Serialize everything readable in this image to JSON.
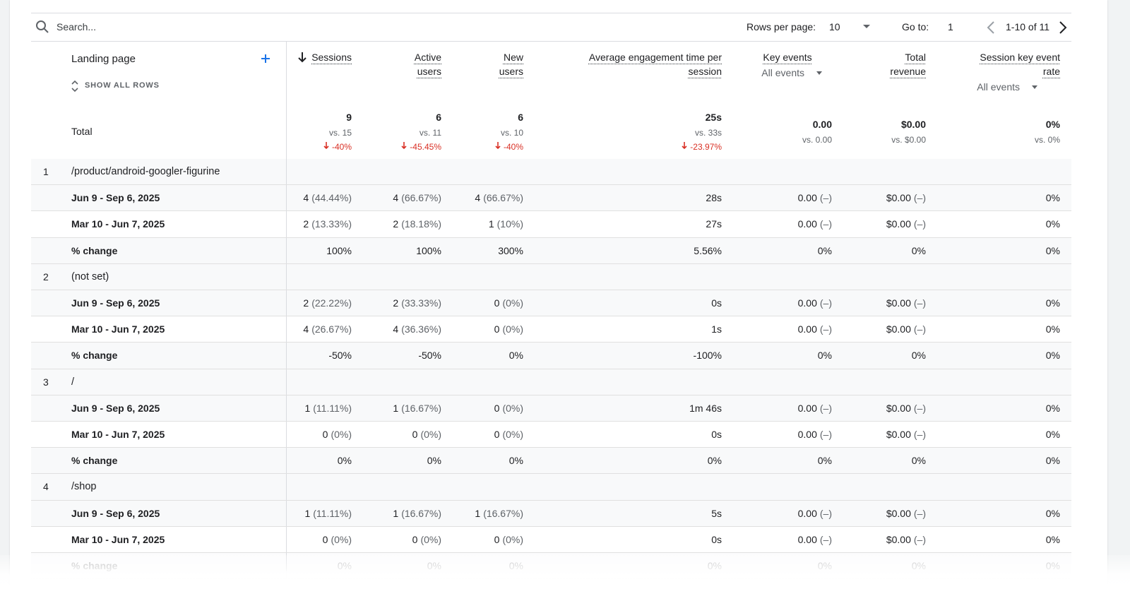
{
  "toolbar": {
    "search_placeholder": "Search...",
    "rows_per_page_label": "Rows per page:",
    "rows_per_page": "10",
    "goto_label": "Go to:",
    "goto_value": "1",
    "range": "1-10 of 11"
  },
  "table": {
    "dimension_header": "Landing page",
    "show_all_rows": "SHOW ALL ROWS",
    "total_label": "Total",
    "columns": [
      {
        "label": "Sessions"
      },
      {
        "label": "Active users"
      },
      {
        "label": "New users"
      },
      {
        "label": "Average engagement time per session"
      },
      {
        "label": "Key events",
        "selector": "All events"
      },
      {
        "label": "Total revenue"
      },
      {
        "label": "Session key event rate",
        "selector": "All events"
      }
    ],
    "totals": [
      {
        "value": "9",
        "compare": "vs. 15",
        "change": "-40%"
      },
      {
        "value": "6",
        "compare": "vs. 11",
        "change": "-45.45%"
      },
      {
        "value": "6",
        "compare": "vs. 10",
        "change": "-40%"
      },
      {
        "value": "25s",
        "compare": "vs. 33s",
        "change": "-23.97%"
      },
      {
        "value": "0.00",
        "compare": "vs. 0.00"
      },
      {
        "value": "$0.00",
        "compare": "vs. $0.00"
      },
      {
        "value": "0%",
        "compare": "vs. 0%"
      }
    ],
    "groups": [
      {
        "index": "1",
        "page": "/product/android-googler-figurine",
        "rows": [
          {
            "label": "Jun 9 - Sep 6, 2025",
            "cells": [
              [
                "4",
                "(44.44%)"
              ],
              [
                "4",
                "(66.67%)"
              ],
              [
                "4",
                "(66.67%)"
              ],
              "28s",
              [
                "0.00",
                "(–)"
              ],
              [
                "$0.00",
                "(–)"
              ],
              "0%"
            ]
          },
          {
            "label": "Mar 10 - Jun 7, 2025",
            "cells": [
              [
                "2",
                "(13.33%)"
              ],
              [
                "2",
                "(18.18%)"
              ],
              [
                "1",
                "(10%)"
              ],
              "27s",
              [
                "0.00",
                "(–)"
              ],
              [
                "$0.00",
                "(–)"
              ],
              "0%"
            ]
          },
          {
            "label": "% change",
            "cells": [
              "100%",
              "100%",
              "300%",
              "5.56%",
              "0%",
              "0%",
              "0%"
            ]
          }
        ]
      },
      {
        "index": "2",
        "page": "(not set)",
        "rows": [
          {
            "label": "Jun 9 - Sep 6, 2025",
            "cells": [
              [
                "2",
                "(22.22%)"
              ],
              [
                "2",
                "(33.33%)"
              ],
              [
                "0",
                "(0%)"
              ],
              "0s",
              [
                "0.00",
                "(–)"
              ],
              [
                "$0.00",
                "(–)"
              ],
              "0%"
            ]
          },
          {
            "label": "Mar 10 - Jun 7, 2025",
            "cells": [
              [
                "4",
                "(26.67%)"
              ],
              [
                "4",
                "(36.36%)"
              ],
              [
                "0",
                "(0%)"
              ],
              "1s",
              [
                "0.00",
                "(–)"
              ],
              [
                "$0.00",
                "(–)"
              ],
              "0%"
            ]
          },
          {
            "label": "% change",
            "cells": [
              "-50%",
              "-50%",
              "0%",
              "-100%",
              "0%",
              "0%",
              "0%"
            ]
          }
        ]
      },
      {
        "index": "3",
        "page": "/",
        "rows": [
          {
            "label": "Jun 9 - Sep 6, 2025",
            "cells": [
              [
                "1",
                "(11.11%)"
              ],
              [
                "1",
                "(16.67%)"
              ],
              [
                "0",
                "(0%)"
              ],
              "1m 46s",
              [
                "0.00",
                "(–)"
              ],
              [
                "$0.00",
                "(–)"
              ],
              "0%"
            ]
          },
          {
            "label": "Mar 10 - Jun 7, 2025",
            "cells": [
              [
                "0",
                "(0%)"
              ],
              [
                "0",
                "(0%)"
              ],
              [
                "0",
                "(0%)"
              ],
              "0s",
              [
                "0.00",
                "(–)"
              ],
              [
                "$0.00",
                "(–)"
              ],
              "0%"
            ]
          },
          {
            "label": "% change",
            "cells": [
              "0%",
              "0%",
              "0%",
              "0%",
              "0%",
              "0%",
              "0%"
            ]
          }
        ]
      },
      {
        "index": "4",
        "page": "/shop",
        "rows": [
          {
            "label": "Jun 9 - Sep 6, 2025",
            "cells": [
              [
                "1",
                "(11.11%)"
              ],
              [
                "1",
                "(16.67%)"
              ],
              [
                "1",
                "(16.67%)"
              ],
              "5s",
              [
                "0.00",
                "(–)"
              ],
              [
                "$0.00",
                "(–)"
              ],
              "0%"
            ]
          },
          {
            "label": "Mar 10 - Jun 7, 2025",
            "cells": [
              [
                "0",
                "(0%)"
              ],
              [
                "0",
                "(0%)"
              ],
              [
                "0",
                "(0%)"
              ],
              "0s",
              [
                "0.00",
                "(–)"
              ],
              [
                "$0.00",
                "(–)"
              ],
              "0%"
            ]
          },
          {
            "label": "% change",
            "cells": [
              "0%",
              "0%",
              "0%",
              "0%",
              "0%",
              "0%",
              "0%"
            ]
          }
        ]
      }
    ]
  }
}
